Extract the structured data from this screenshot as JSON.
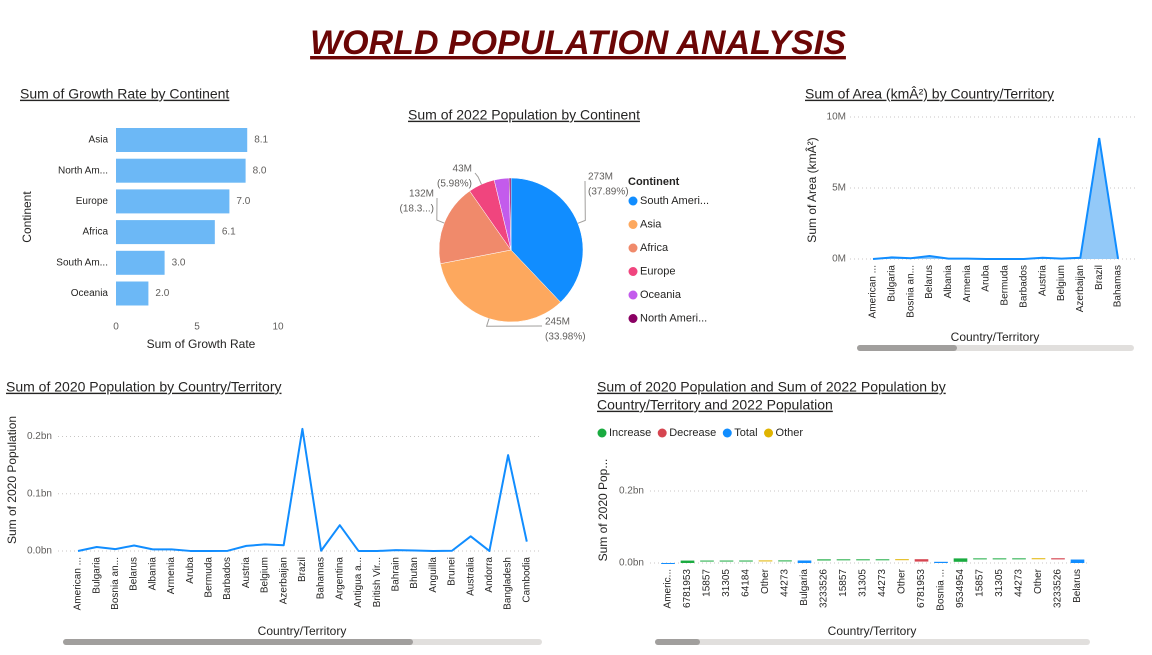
{
  "title": "WORLD POPULATION ANALYSIS",
  "chart_data": [
    {
      "type": "hbar",
      "title": "Sum of Growth Rate by Continent",
      "x_label": "Sum of Growth Rate",
      "y_label": "Continent",
      "categories": [
        "Asia",
        "North Am...",
        "Europe",
        "Africa",
        "South Am...",
        "Oceania"
      ],
      "values": [
        8.1,
        8.0,
        7.0,
        6.1,
        3.0,
        2.0
      ],
      "value_labels": [
        "8.1",
        "8.0",
        "7.0",
        "6.1",
        "3.0",
        "2.0"
      ],
      "color": "#6cb8f6",
      "xlim": [
        0,
        10
      ],
      "xticks": [
        0,
        5,
        10
      ]
    },
    {
      "type": "pie",
      "title": "Sum of 2022 Population by Continent",
      "legend_title": "Continent",
      "categories": [
        "South Ameri...",
        "Asia",
        "Africa",
        "Europe",
        "Oceania",
        "North Ameri..."
      ],
      "values": [
        273,
        245,
        132,
        43,
        24,
        3
      ],
      "value_labels": [
        "273M",
        "245M",
        "132M",
        "43M",
        null,
        null
      ],
      "percent_labels": [
        "(37.89%)",
        "(33.98%)",
        "(18.3...)",
        "(5.98%)",
        null,
        null
      ],
      "colors": [
        "#118dff",
        "#fda85e",
        "#f08a6b",
        "#f0457e",
        "#c35bec",
        "#8a0063"
      ]
    },
    {
      "type": "area",
      "title": "Sum of Area (kmÂ²) by Country/Territory",
      "x_label": "Country/Territory",
      "y_label": "Sum of Area (kmÂ²)",
      "categories": [
        "American ...",
        "Bulgaria",
        "Bosnia an...",
        "Belarus",
        "Albania",
        "Armenia",
        "Aruba",
        "Bermuda",
        "Barbados",
        "Austria",
        "Belgium",
        "Azerbaijan",
        "Brazil",
        "Bahamas"
      ],
      "values": [
        199,
        110879,
        51209,
        207600,
        28748,
        29743,
        180,
        54,
        430,
        83871,
        30528,
        86600,
        8515767,
        13943
      ],
      "color": "#118dff",
      "fill": "#93c9f8",
      "ylim": [
        0,
        10000000
      ],
      "yticks": [
        {
          "value": 0,
          "label": "0M"
        },
        {
          "value": 5000000,
          "label": "5M"
        },
        {
          "value": 10000000,
          "label": "10M"
        }
      ],
      "grid": true
    },
    {
      "type": "line",
      "title": "Sum of 2020 Population by Country/Territory",
      "x_label": "Country/Territory",
      "y_label": "Sum of 2020 Population",
      "categories": [
        "American ...",
        "Bulgaria",
        "Bosnia an...",
        "Belarus",
        "Albania",
        "Armenia",
        "Aruba",
        "Bermuda",
        "Barbados",
        "Austria",
        "Belgium",
        "Azerbaijan",
        "Brazil",
        "Bahamas",
        "Argentina",
        "Antigua a...",
        "British Vir...",
        "Bahrain",
        "Bhutan",
        "Anguilla",
        "Brunei",
        "Australia",
        "Andorra",
        "Bangladesh",
        "Cambodia"
      ],
      "values": [
        46189,
        6979175,
        3318407,
        9633740,
        2866849,
        2805608,
        106585,
        64031,
        280693,
        8907777,
        11561717,
        10093121,
        213196304,
        406471,
        45036032,
        92664,
        30910,
        1477469,
        772506,
        15585,
        441725,
        25670051,
        77700,
        167420951,
        16396860
      ],
      "color": "#118dff",
      "ylim": [
        0,
        220000000
      ],
      "yticks": [
        {
          "value": 0,
          "label": "0.0bn"
        },
        {
          "value": 100000000,
          "label": "0.1bn"
        },
        {
          "value": 200000000,
          "label": "0.2bn"
        }
      ],
      "grid": true
    },
    {
      "type": "waterfall",
      "title": [
        "Sum of 2020 Population and Sum of 2022 Population by",
        "Country/Territory and 2022 Population"
      ],
      "x_label": "Country/Territory",
      "y_label": "Sum of 2020 Pop...",
      "categories": [
        "Americ...",
        "6781953",
        "15857",
        "31305",
        "64184",
        "Other",
        "44273",
        "Bulgaria",
        "3233526",
        "15857",
        "31305",
        "44273",
        "Other",
        "6781953",
        "Bosnia ...",
        "9534954",
        "15857",
        "31305",
        "44273",
        "Other",
        "3233526",
        "Belarus"
      ],
      "series": [
        {
          "name": "Increase",
          "kind": "delta",
          "color": "#1aab40",
          "values": [
            null,
            6700000,
            20000,
            30000,
            60000,
            null,
            40000,
            null,
            3200000,
            20000,
            30000,
            40000,
            null,
            null,
            null,
            9500000,
            20000,
            30000,
            40000,
            null,
            null,
            null
          ]
        },
        {
          "name": "Decrease",
          "kind": "delta",
          "color": "#d64550",
          "values": [
            null,
            null,
            null,
            null,
            null,
            null,
            null,
            null,
            null,
            null,
            null,
            null,
            null,
            -6600000,
            null,
            null,
            null,
            null,
            null,
            null,
            -3200000,
            null
          ]
        },
        {
          "name": "Total",
          "kind": "total",
          "color": "#118dff",
          "values": [
            46189,
            null,
            null,
            null,
            null,
            null,
            null,
            6979175,
            null,
            null,
            null,
            null,
            null,
            null,
            3318407,
            null,
            null,
            null,
            null,
            null,
            null,
            9633740
          ]
        },
        {
          "name": "Other",
          "kind": "delta",
          "color": "#e0b400",
          "values": [
            null,
            null,
            null,
            null,
            null,
            300000,
            null,
            null,
            null,
            null,
            null,
            null,
            300000,
            null,
            null,
            null,
            null,
            null,
            null,
            300000,
            null,
            null
          ]
        }
      ],
      "ylim": [
        0,
        300000000
      ],
      "yticks": [
        {
          "value": 0,
          "label": "0.0bn"
        },
        {
          "value": 200000000,
          "label": "0.2bn"
        }
      ],
      "grid": true
    }
  ]
}
